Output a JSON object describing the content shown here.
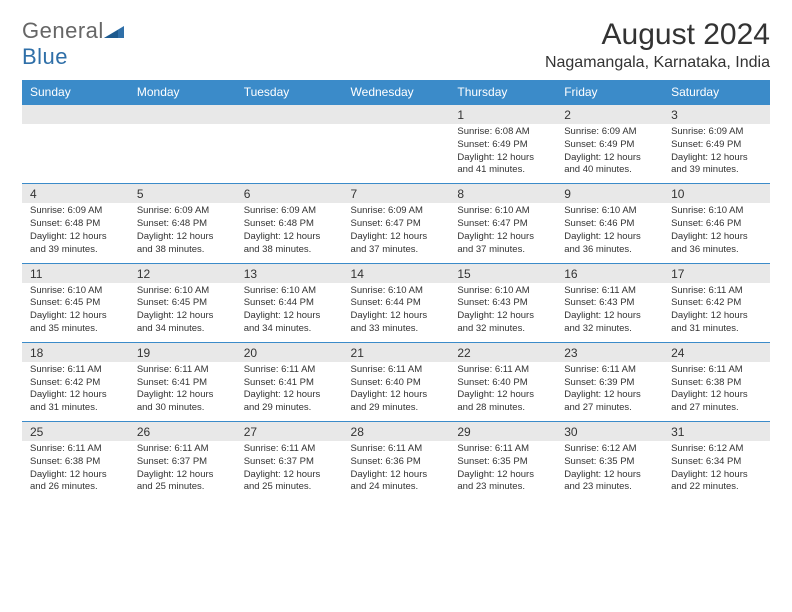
{
  "logo": {
    "text1": "General",
    "text2": "Blue"
  },
  "title": "August 2024",
  "location": "Nagamangala, Karnataka, India",
  "colors": {
    "header_bg": "#3b8bc9",
    "header_text": "#ffffff",
    "daynum_bg": "#e8e8e8",
    "border": "#3b8bc9",
    "text": "#333333"
  },
  "weekdays": [
    "Sunday",
    "Monday",
    "Tuesday",
    "Wednesday",
    "Thursday",
    "Friday",
    "Saturday"
  ],
  "weeks": [
    [
      null,
      null,
      null,
      null,
      {
        "n": "1",
        "sr": "Sunrise: 6:08 AM",
        "ss": "Sunset: 6:49 PM",
        "dl": "Daylight: 12 hours and 41 minutes."
      },
      {
        "n": "2",
        "sr": "Sunrise: 6:09 AM",
        "ss": "Sunset: 6:49 PM",
        "dl": "Daylight: 12 hours and 40 minutes."
      },
      {
        "n": "3",
        "sr": "Sunrise: 6:09 AM",
        "ss": "Sunset: 6:49 PM",
        "dl": "Daylight: 12 hours and 39 minutes."
      }
    ],
    [
      {
        "n": "4",
        "sr": "Sunrise: 6:09 AM",
        "ss": "Sunset: 6:48 PM",
        "dl": "Daylight: 12 hours and 39 minutes."
      },
      {
        "n": "5",
        "sr": "Sunrise: 6:09 AM",
        "ss": "Sunset: 6:48 PM",
        "dl": "Daylight: 12 hours and 38 minutes."
      },
      {
        "n": "6",
        "sr": "Sunrise: 6:09 AM",
        "ss": "Sunset: 6:48 PM",
        "dl": "Daylight: 12 hours and 38 minutes."
      },
      {
        "n": "7",
        "sr": "Sunrise: 6:09 AM",
        "ss": "Sunset: 6:47 PM",
        "dl": "Daylight: 12 hours and 37 minutes."
      },
      {
        "n": "8",
        "sr": "Sunrise: 6:10 AM",
        "ss": "Sunset: 6:47 PM",
        "dl": "Daylight: 12 hours and 37 minutes."
      },
      {
        "n": "9",
        "sr": "Sunrise: 6:10 AM",
        "ss": "Sunset: 6:46 PM",
        "dl": "Daylight: 12 hours and 36 minutes."
      },
      {
        "n": "10",
        "sr": "Sunrise: 6:10 AM",
        "ss": "Sunset: 6:46 PM",
        "dl": "Daylight: 12 hours and 36 minutes."
      }
    ],
    [
      {
        "n": "11",
        "sr": "Sunrise: 6:10 AM",
        "ss": "Sunset: 6:45 PM",
        "dl": "Daylight: 12 hours and 35 minutes."
      },
      {
        "n": "12",
        "sr": "Sunrise: 6:10 AM",
        "ss": "Sunset: 6:45 PM",
        "dl": "Daylight: 12 hours and 34 minutes."
      },
      {
        "n": "13",
        "sr": "Sunrise: 6:10 AM",
        "ss": "Sunset: 6:44 PM",
        "dl": "Daylight: 12 hours and 34 minutes."
      },
      {
        "n": "14",
        "sr": "Sunrise: 6:10 AM",
        "ss": "Sunset: 6:44 PM",
        "dl": "Daylight: 12 hours and 33 minutes."
      },
      {
        "n": "15",
        "sr": "Sunrise: 6:10 AM",
        "ss": "Sunset: 6:43 PM",
        "dl": "Daylight: 12 hours and 32 minutes."
      },
      {
        "n": "16",
        "sr": "Sunrise: 6:11 AM",
        "ss": "Sunset: 6:43 PM",
        "dl": "Daylight: 12 hours and 32 minutes."
      },
      {
        "n": "17",
        "sr": "Sunrise: 6:11 AM",
        "ss": "Sunset: 6:42 PM",
        "dl": "Daylight: 12 hours and 31 minutes."
      }
    ],
    [
      {
        "n": "18",
        "sr": "Sunrise: 6:11 AM",
        "ss": "Sunset: 6:42 PM",
        "dl": "Daylight: 12 hours and 31 minutes."
      },
      {
        "n": "19",
        "sr": "Sunrise: 6:11 AM",
        "ss": "Sunset: 6:41 PM",
        "dl": "Daylight: 12 hours and 30 minutes."
      },
      {
        "n": "20",
        "sr": "Sunrise: 6:11 AM",
        "ss": "Sunset: 6:41 PM",
        "dl": "Daylight: 12 hours and 29 minutes."
      },
      {
        "n": "21",
        "sr": "Sunrise: 6:11 AM",
        "ss": "Sunset: 6:40 PM",
        "dl": "Daylight: 12 hours and 29 minutes."
      },
      {
        "n": "22",
        "sr": "Sunrise: 6:11 AM",
        "ss": "Sunset: 6:40 PM",
        "dl": "Daylight: 12 hours and 28 minutes."
      },
      {
        "n": "23",
        "sr": "Sunrise: 6:11 AM",
        "ss": "Sunset: 6:39 PM",
        "dl": "Daylight: 12 hours and 27 minutes."
      },
      {
        "n": "24",
        "sr": "Sunrise: 6:11 AM",
        "ss": "Sunset: 6:38 PM",
        "dl": "Daylight: 12 hours and 27 minutes."
      }
    ],
    [
      {
        "n": "25",
        "sr": "Sunrise: 6:11 AM",
        "ss": "Sunset: 6:38 PM",
        "dl": "Daylight: 12 hours and 26 minutes."
      },
      {
        "n": "26",
        "sr": "Sunrise: 6:11 AM",
        "ss": "Sunset: 6:37 PM",
        "dl": "Daylight: 12 hours and 25 minutes."
      },
      {
        "n": "27",
        "sr": "Sunrise: 6:11 AM",
        "ss": "Sunset: 6:37 PM",
        "dl": "Daylight: 12 hours and 25 minutes."
      },
      {
        "n": "28",
        "sr": "Sunrise: 6:11 AM",
        "ss": "Sunset: 6:36 PM",
        "dl": "Daylight: 12 hours and 24 minutes."
      },
      {
        "n": "29",
        "sr": "Sunrise: 6:11 AM",
        "ss": "Sunset: 6:35 PM",
        "dl": "Daylight: 12 hours and 23 minutes."
      },
      {
        "n": "30",
        "sr": "Sunrise: 6:12 AM",
        "ss": "Sunset: 6:35 PM",
        "dl": "Daylight: 12 hours and 23 minutes."
      },
      {
        "n": "31",
        "sr": "Sunrise: 6:12 AM",
        "ss": "Sunset: 6:34 PM",
        "dl": "Daylight: 12 hours and 22 minutes."
      }
    ]
  ]
}
